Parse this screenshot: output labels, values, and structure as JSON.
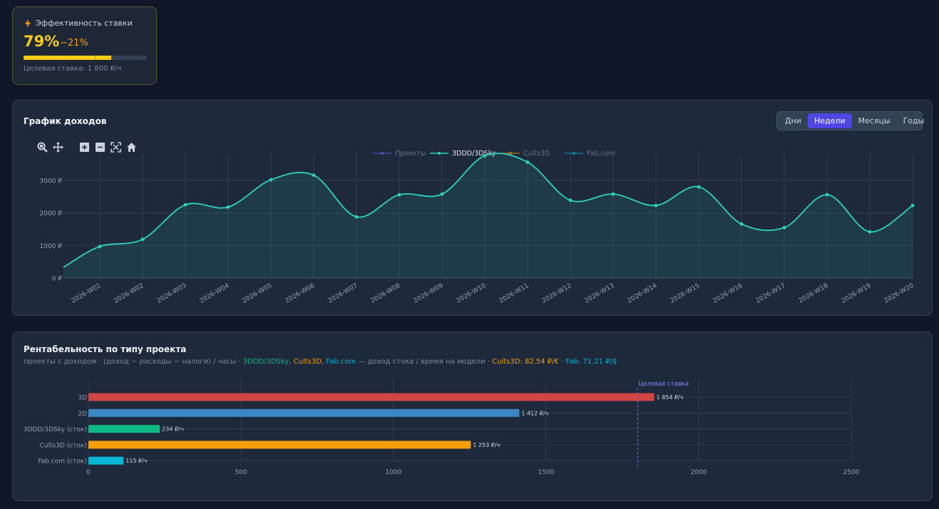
{
  "kpi": {
    "title": "Эффективность ставки",
    "value": "79%",
    "delta": "−21%",
    "progress": 0.79,
    "subtitle": "Целевая ставка: 1 800 ₽/ч",
    "accent": "#facc15"
  },
  "income_card": {
    "title": "График доходов",
    "period_tabs": [
      {
        "label": "Дни",
        "active": false
      },
      {
        "label": "Недели",
        "active": true
      },
      {
        "label": "Месяцы",
        "active": false
      },
      {
        "label": "Годы",
        "active": false
      }
    ],
    "toolbar_icons": [
      "zoom-icon",
      "pan-icon",
      "zoom-in-icon",
      "zoom-out-icon",
      "autoscale-icon",
      "home-icon"
    ]
  },
  "profit_card": {
    "title": "Рентабельность по типу проекта",
    "subtitle_parts": [
      {
        "text": "проекты с доходом · (доход − расходы − налоги) / часы · ",
        "color": "#7c8aa0"
      },
      {
        "text": "3DDD/3DSky",
        "color": "#10b981"
      },
      {
        "text": ", ",
        "color": "#7c8aa0"
      },
      {
        "text": "Cults3D",
        "color": "#f59e0b"
      },
      {
        "text": ", ",
        "color": "#7c8aa0"
      },
      {
        "text": "Fab.com",
        "color": "#06b6d4"
      },
      {
        "text": " — доход стока / время на модели · ",
        "color": "#7c8aa0"
      },
      {
        "text": "Cults3D: 82.54 ₽/€",
        "color": "#f59e0b"
      },
      {
        "text": " · ",
        "color": "#7c8aa0"
      },
      {
        "text": "Fab: 71.21 ₽/$",
        "color": "#06b6d4"
      }
    ]
  },
  "chart_data": [
    {
      "type": "line",
      "legend": [
        {
          "name": "Проекты",
          "color": "#6366f1"
        },
        {
          "name": "3DDD/3DSky",
          "color": "#2dd4bf"
        },
        {
          "name": "Cults3D",
          "color": "#f59e0b"
        },
        {
          "name": "Fab.com",
          "color": "#06b6d4"
        }
      ],
      "categories": [
        "2026-W01",
        "2026-W02",
        "2026-W03",
        "2026-W04",
        "2026-W05",
        "2026-W06",
        "2026-W07",
        "2026-W08",
        "2026-W09",
        "2026-W10",
        "2026-W11",
        "2026-W12",
        "2026-W13",
        "2026-W14",
        "2026-W15",
        "2026-W16",
        "2026-W17",
        "2026-W18",
        "2026-W19",
        "2026-W20"
      ],
      "start_value": 330,
      "series": [
        {
          "name": "3DDD/3DSky",
          "color": "#2dd4bf",
          "values": [
            970,
            1190,
            2250,
            2180,
            3020,
            3160,
            1880,
            2560,
            2580,
            3760,
            3560,
            2390,
            2580,
            2230,
            2800,
            1660,
            1550,
            2560,
            1420,
            2230
          ]
        }
      ],
      "yticks": [
        "0 ₽",
        "1000 ₽",
        "2000 ₽",
        "3000 ₽"
      ],
      "ylim": [
        0,
        3900
      ],
      "grid": true
    },
    {
      "type": "bar",
      "orientation": "horizontal",
      "categories": [
        "3D",
        "2D",
        "3DDD/3DSky (сток)",
        "Cults3D (сток)",
        "Fab.com (сток)"
      ],
      "values": [
        1854,
        1412,
        234,
        1253,
        115
      ],
      "value_labels": [
        "1 854 ₽/ч",
        "1 412 ₽/ч",
        "234 ₽/ч",
        "1 253 ₽/ч",
        "115 ₽/ч"
      ],
      "colors": [
        "#d04444",
        "#3b86c4",
        "#10b981",
        "#f59e0b",
        "#06b6d4"
      ],
      "xticks": [
        0,
        500,
        1000,
        1500,
        2000,
        2500
      ],
      "xlim": [
        0,
        2500
      ],
      "target_value": 1800,
      "target_label": "Целевая ставка",
      "target_color": "#6366f1",
      "grid": true
    }
  ]
}
